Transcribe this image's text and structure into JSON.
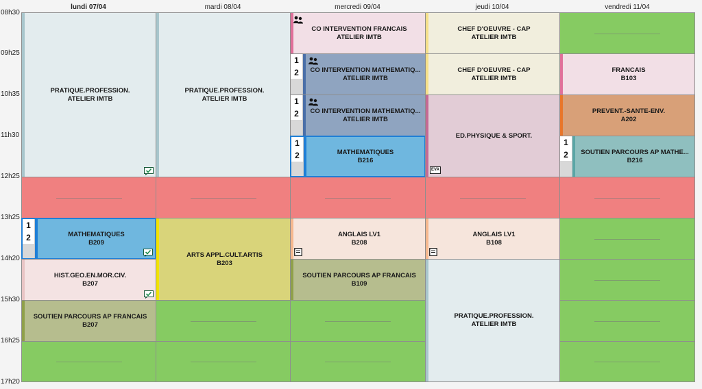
{
  "days": [
    "lundi 07/04",
    "mardi 08/04",
    "mercredi 09/04",
    "jeudi 10/04",
    "vendredi 11/04"
  ],
  "times": [
    "08h30",
    "09h25",
    "10h35",
    "11h30",
    "12h25",
    "13h25",
    "14h20",
    "15h30",
    "16h25",
    "17h20"
  ],
  "group_labels": [
    "1",
    "2"
  ],
  "eva_label": "EVA",
  "colors": {
    "free_slot": "#86cb62",
    "lunch_break": "#f08080",
    "selected_border": "#1f7fd6"
  },
  "courses": {
    "mon_prat_prof": {
      "title": "PRATIQUE.PROFESSION.",
      "room": "ATELIER IMTB"
    },
    "mon_math": {
      "title": "MATHEMATIQUES",
      "room": "B209"
    },
    "mon_histgeo": {
      "title": "HIST.GEO.EN.MOR.CIV.",
      "room": "B207"
    },
    "mon_soutien_fr": {
      "title": "SOUTIEN  PARCOURS AP FRANCAIS",
      "room": "B207"
    },
    "tue_prat_prof": {
      "title": "PRATIQUE.PROFESSION.",
      "room": "ATELIER IMTB"
    },
    "tue_arts": {
      "title": "ARTS APPL.CULT.ARTIS",
      "room": "B203"
    },
    "wed_co_fr": {
      "title": "CO INTERVENTION FRANCAIS",
      "room": "ATELIER IMTB"
    },
    "wed_co_math1": {
      "title": "CO INTERVENTION MATHEMATIQ...",
      "room": "ATELIER IMTB"
    },
    "wed_co_math2": {
      "title": "CO INTERVENTION MATHEMATIQ...",
      "room": "ATELIER IMTB"
    },
    "wed_math": {
      "title": "MATHEMATIQUES",
      "room": "B216"
    },
    "wed_anglais": {
      "title": "ANGLAIS LV1",
      "room": "B208"
    },
    "wed_soutien_fr": {
      "title": "SOUTIEN  PARCOURS AP FRANCAIS",
      "room": "B109"
    },
    "thu_chef1": {
      "title": "CHEF D'OEUVRE - CAP",
      "room": "ATELIER IMTB"
    },
    "thu_chef2": {
      "title": "CHEF D'OEUVRE - CAP",
      "room": "ATELIER IMTB"
    },
    "thu_eps": {
      "title": "ED.PHYSIQUE & SPORT.",
      "room": ""
    },
    "thu_anglais": {
      "title": "ANGLAIS LV1",
      "room": "B108"
    },
    "thu_prat_prof": {
      "title": "PRATIQUE.PROFESSION.",
      "room": "ATELIER IMTB"
    },
    "fri_francais": {
      "title": "FRANCAIS",
      "room": "B103"
    },
    "fri_prevent": {
      "title": "PREVENT.-SANTE-ENV.",
      "room": "A202"
    },
    "fri_soutien_math": {
      "title": "SOUTIEN PARCOURS AP MATHE...",
      "room": "B216"
    }
  }
}
